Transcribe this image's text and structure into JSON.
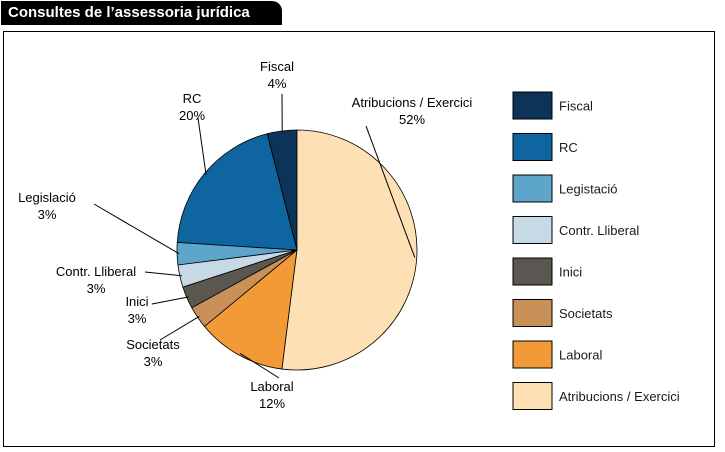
{
  "title": "Consultes de l’assessoria jurídica",
  "chart_data": {
    "type": "pie",
    "title": "Consultes de l’assessoria jurídica",
    "unit": "%",
    "legend_position": "right",
    "slices": [
      {
        "label": "Fiscal",
        "legend": "Fiscal",
        "value": 4,
        "value_label": "4%",
        "color": "#0d3358"
      },
      {
        "label": "RC",
        "legend": "RC",
        "value": 20,
        "value_label": "20%",
        "color": "#0e65a0"
      },
      {
        "label": "Legislació",
        "legend": "Legistació",
        "value": 3,
        "value_label": "3%",
        "color": "#5da5cb"
      },
      {
        "label": "Contr. Lliberal",
        "legend": "Contr. Lliberal",
        "value": 3,
        "value_label": "3%",
        "color": "#c7d9e5"
      },
      {
        "label": "Inici",
        "legend": "Inici",
        "value": 3,
        "value_label": "3%",
        "color": "#5a5650"
      },
      {
        "label": "Societats",
        "legend": "Societats",
        "value": 3,
        "value_label": "3%",
        "color": "#c89158"
      },
      {
        "label": "Laboral",
        "legend": "Laboral",
        "value": 12,
        "value_label": "12%",
        "color": "#f29a38"
      },
      {
        "label": "Atribucions / Exercici",
        "legend": "Atribucions / Exercici",
        "value": 52,
        "value_label": "52%",
        "color": "#fde0b3"
      }
    ]
  }
}
